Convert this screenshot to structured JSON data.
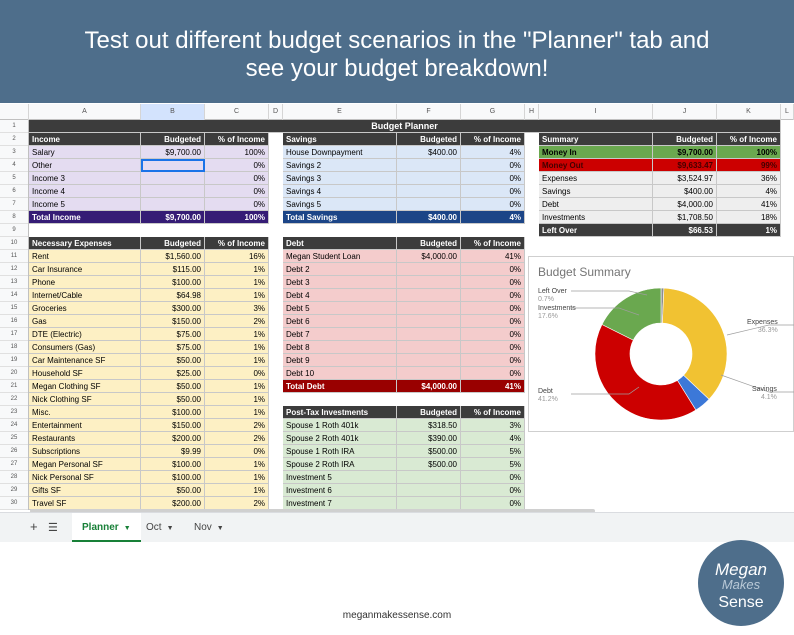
{
  "banner": {
    "line1": "Test out different budget scenarios in the \"Planner\" tab and",
    "line2": "see your budget breakdown!"
  },
  "columns": [
    "A",
    "B",
    "C",
    "D",
    "E",
    "F",
    "G",
    "H",
    "I",
    "J",
    "K",
    "L"
  ],
  "rows": [
    "1",
    "2",
    "3",
    "4",
    "5",
    "6",
    "7",
    "8",
    "9",
    "10",
    "11",
    "12",
    "13",
    "14",
    "15",
    "16",
    "17",
    "18",
    "19",
    "20",
    "21",
    "22",
    "23",
    "24",
    "25",
    "26",
    "27",
    "28",
    "29",
    "30"
  ],
  "title": "Budget Planner",
  "income": {
    "headers": [
      "Income",
      "Budgeted",
      "% of Income"
    ],
    "rows": [
      [
        "Salary",
        "$9,700.00",
        "100%"
      ],
      [
        "Other",
        "",
        "0%"
      ],
      [
        "Income 3",
        "",
        "0%"
      ],
      [
        "Income 4",
        "",
        "0%"
      ],
      [
        "Income 5",
        "",
        "0%"
      ]
    ],
    "total": [
      "Total Income",
      "$9,700.00",
      "100%"
    ]
  },
  "savings": {
    "headers": [
      "Savings",
      "Budgeted",
      "% of Income"
    ],
    "rows": [
      [
        "House Downpayment",
        "$400.00",
        "4%"
      ],
      [
        "Savings 2",
        "",
        "0%"
      ],
      [
        "Savings 3",
        "",
        "0%"
      ],
      [
        "Savings 4",
        "",
        "0%"
      ],
      [
        "Savings 5",
        "",
        "0%"
      ]
    ],
    "total": [
      "Total Savings",
      "$400.00",
      "4%"
    ]
  },
  "summary": {
    "headers": [
      "Summary",
      "Budgeted",
      "% of Income"
    ],
    "money_in": [
      "Money In",
      "$9,700.00",
      "100%"
    ],
    "money_out": [
      "Money Out",
      "$9,633.47",
      "99%"
    ],
    "rows": [
      [
        "Expenses",
        "$3,524.97",
        "36%"
      ],
      [
        "Savings",
        "$400.00",
        "4%"
      ],
      [
        "Debt",
        "$4,000.00",
        "41%"
      ],
      [
        "Investments",
        "$1,708.50",
        "18%"
      ]
    ],
    "left_over": [
      "Left Over",
      "$66.53",
      "1%"
    ]
  },
  "expenses": {
    "headers": [
      "Necessary Expenses",
      "Budgeted",
      "% of Income"
    ],
    "rows": [
      [
        "Rent",
        "$1,560.00",
        "16%"
      ],
      [
        "Car Insurance",
        "$115.00",
        "1%"
      ],
      [
        "Phone",
        "$100.00",
        "1%"
      ],
      [
        "Internet/Cable",
        "$64.98",
        "1%"
      ],
      [
        "Groceries",
        "$300.00",
        "3%"
      ],
      [
        "Gas",
        "$150.00",
        "2%"
      ],
      [
        "DTE (Electric)",
        "$75.00",
        "1%"
      ],
      [
        "Consumers (Gas)",
        "$75.00",
        "1%"
      ],
      [
        "Car Maintenance SF",
        "$50.00",
        "1%"
      ],
      [
        "Household SF",
        "$25.00",
        "0%"
      ],
      [
        "Megan Clothing SF",
        "$50.00",
        "1%"
      ],
      [
        "Nick Clothing SF",
        "$50.00",
        "1%"
      ],
      [
        "Misc.",
        "$100.00",
        "1%"
      ],
      [
        "Entertainment",
        "$150.00",
        "2%"
      ],
      [
        "Restaurants",
        "$200.00",
        "2%"
      ],
      [
        "Subscriptions",
        "$9.99",
        "0%"
      ],
      [
        "Megan Personal SF",
        "$100.00",
        "1%"
      ],
      [
        "Nick Personal SF",
        "$100.00",
        "1%"
      ],
      [
        "Gifts SF",
        "$50.00",
        "1%"
      ],
      [
        "Travel SF",
        "$200.00",
        "2%"
      ]
    ]
  },
  "debt": {
    "headers": [
      "Debt",
      "Budgeted",
      "% of Income"
    ],
    "rows": [
      [
        "Megan Student Loan",
        "$4,000.00",
        "41%"
      ],
      [
        "Debt 2",
        "",
        "0%"
      ],
      [
        "Debt 3",
        "",
        "0%"
      ],
      [
        "Debt 4",
        "",
        "0%"
      ],
      [
        "Debt 5",
        "",
        "0%"
      ],
      [
        "Debt 6",
        "",
        "0%"
      ],
      [
        "Debt 7",
        "",
        "0%"
      ],
      [
        "Debt 8",
        "",
        "0%"
      ],
      [
        "Debt 9",
        "",
        "0%"
      ],
      [
        "Debt 10",
        "",
        "0%"
      ]
    ],
    "total": [
      "Total Debt",
      "$4,000.00",
      "41%"
    ]
  },
  "investments": {
    "headers": [
      "Post-Tax Investments",
      "Budgeted",
      "% of Income"
    ],
    "rows": [
      [
        "Spouse 1 Roth 401k",
        "$318.50",
        "3%"
      ],
      [
        "Spouse 2 Roth 401k",
        "$390.00",
        "4%"
      ],
      [
        "Spouse 1 Roth IRA",
        "$500.00",
        "5%"
      ],
      [
        "Spouse 2 Roth IRA",
        "$500.00",
        "5%"
      ],
      [
        "Investment 5",
        "",
        "0%"
      ],
      [
        "Investment 6",
        "",
        "0%"
      ],
      [
        "Investment 7",
        "",
        "0%"
      ]
    ]
  },
  "chart_data": {
    "type": "pie",
    "title": "Budget Summary",
    "donut": true,
    "slices": [
      {
        "label": "Left Over",
        "value": 0.7,
        "pct": "0.7%",
        "color": "#8e8e8e"
      },
      {
        "label": "Expenses",
        "value": 36.3,
        "pct": "36.3%",
        "color": "#f1c232"
      },
      {
        "label": "Savings",
        "value": 4.1,
        "pct": "4.1%",
        "color": "#3c78d8"
      },
      {
        "label": "Debt",
        "value": 41.2,
        "pct": "41.2%",
        "color": "#cc0000"
      },
      {
        "label": "Investments",
        "value": 17.6,
        "pct": "17.6%",
        "color": "#6aa84f"
      }
    ]
  },
  "tabs": [
    {
      "label": "Planner",
      "active": true
    },
    {
      "label": "Oct",
      "active": false
    },
    {
      "label": "Nov",
      "active": false
    }
  ],
  "footer": "meganmakessense.com",
  "logo": {
    "l1": "Megan",
    "l2": "Makes",
    "l3": "Sense"
  },
  "colors": {
    "banner": "#4e6e8b",
    "accent": "#188038"
  }
}
